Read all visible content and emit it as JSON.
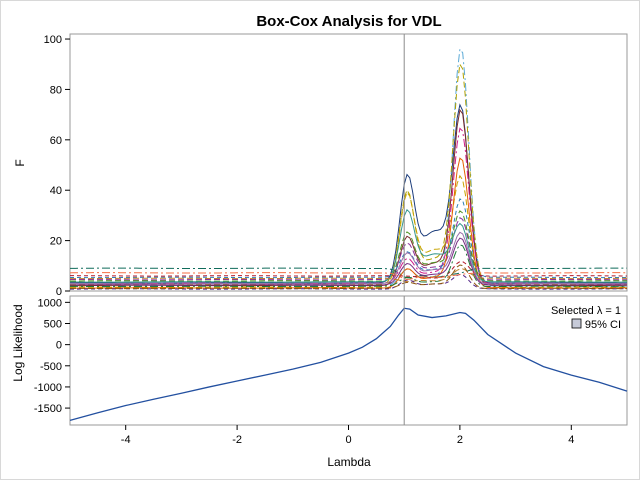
{
  "chart_data": {
    "type": "line",
    "title": "Box-Cox Analysis for VDL",
    "xlabel": "Lambda",
    "xlim": [
      -5,
      5
    ],
    "x_ticks": [
      -4,
      -2,
      0,
      2,
      4
    ],
    "selected_lambda": 1,
    "legend": {
      "placement": "top-right",
      "selected_label": "Selected λ = 1",
      "ci_label": "95% CI"
    },
    "panels": [
      {
        "id": "f-panel",
        "ylabel": "F",
        "ylim": [
          0,
          102
        ],
        "y_ticks": [
          0,
          20,
          40,
          60,
          80,
          100
        ],
        "series_count_note": "",
        "series": [
          {
            "color": "#1a3b7a",
            "dash": "",
            "base": 3.2,
            "p1": 42,
            "p2": 69,
            "mid": 26
          },
          {
            "color": "#5aa9d6",
            "dash": "8,3,2,3",
            "base": 2.0,
            "p1": 8,
            "p2": 96,
            "mid": 6
          },
          {
            "color": "#b0a000",
            "dash": "6,3",
            "base": 2.6,
            "p1": 38,
            "p2": 88,
            "mid": 14
          },
          {
            "color": "#7a2b2b",
            "dash": "",
            "base": 2.2,
            "p1": 20,
            "p2": 70,
            "mid": 12
          },
          {
            "color": "#0f6b5a",
            "dash": "8,3,2,3",
            "base": 9.0,
            "p1": 6,
            "p2": 8,
            "mid": 5
          },
          {
            "color": "#c7a400",
            "dash": "6,3",
            "base": 1.5,
            "p1": 36,
            "p2": 42,
            "mid": 18
          },
          {
            "color": "#8b2f9a",
            "dash": "6,3",
            "base": 4.5,
            "p1": 18,
            "p2": 28,
            "mid": 10
          },
          {
            "color": "#d01c8b",
            "dash": "8,3,2,3",
            "base": 3.0,
            "p1": 12,
            "p2": 64,
            "mid": 8
          },
          {
            "color": "#2c7fb8",
            "dash": "4,3",
            "base": 5.4,
            "p1": 15,
            "p2": 36,
            "mid": 9
          },
          {
            "color": "#e66101",
            "dash": "",
            "base": 1.2,
            "p1": 8,
            "p2": 52,
            "mid": 6
          },
          {
            "color": "#4d9221",
            "dash": "6,3",
            "base": 4.0,
            "p1": 22,
            "p2": 30,
            "mid": 12
          },
          {
            "color": "#762a83",
            "dash": "",
            "base": 2.4,
            "p1": 10,
            "p2": 20,
            "mid": 7
          },
          {
            "color": "#b2182b",
            "dash": "4,3",
            "base": 6.0,
            "p1": 6,
            "p2": 12,
            "mid": 5
          },
          {
            "color": "#1b7837",
            "dash": "8,3,2,3",
            "base": 1.8,
            "p1": 5,
            "p2": 18,
            "mid": 4
          },
          {
            "color": "#35978f",
            "dash": "",
            "base": 3.6,
            "p1": 30,
            "p2": 24,
            "mid": 16
          },
          {
            "color": "#bf812d",
            "dash": "6,3",
            "base": 5.0,
            "p1": 4,
            "p2": 9,
            "mid": 4
          },
          {
            "color": "#542788",
            "dash": "4,3",
            "base": 0.8,
            "p1": 4,
            "p2": 6,
            "mid": 3
          },
          {
            "color": "#f46d43",
            "dash": "8,3,2,3",
            "base": 7.2,
            "p1": 5,
            "p2": 7,
            "mid": 5
          },
          {
            "color": "#9970ab",
            "dash": "",
            "base": 2.9,
            "p1": 14,
            "p2": 22,
            "mid": 9
          },
          {
            "color": "#8c510a",
            "dash": "6,3",
            "base": 1.0,
            "p1": 3,
            "p2": 10,
            "mid": 3
          }
        ]
      },
      {
        "id": "ll-panel",
        "ylabel": "Log Likelihood",
        "ylim": [
          -1900,
          1150
        ],
        "y_ticks": [
          -1500,
          -1000,
          -500,
          0,
          500,
          1000
        ],
        "series": [
          {
            "name": "Log Likelihood",
            "color": "#2350a0",
            "x": [
              -5,
              -4.5,
              -4,
              -3.5,
              -3,
              -2.5,
              -2,
              -1.5,
              -1,
              -0.5,
              0,
              0.25,
              0.5,
              0.75,
              0.9,
              1.0,
              1.1,
              1.25,
              1.5,
              1.75,
              2.0,
              2.1,
              2.25,
              2.5,
              3,
              3.5,
              4,
              4.5,
              5
            ],
            "y": [
              -1790,
              -1610,
              -1440,
              -1290,
              -1150,
              -1000,
              -860,
              -720,
              -580,
              -420,
              -200,
              -60,
              140,
              430,
              700,
              860,
              840,
              700,
              640,
              680,
              760,
              740,
              580,
              240,
              -200,
              -520,
              -720,
              -890,
              -1100
            ]
          }
        ]
      }
    ]
  }
}
